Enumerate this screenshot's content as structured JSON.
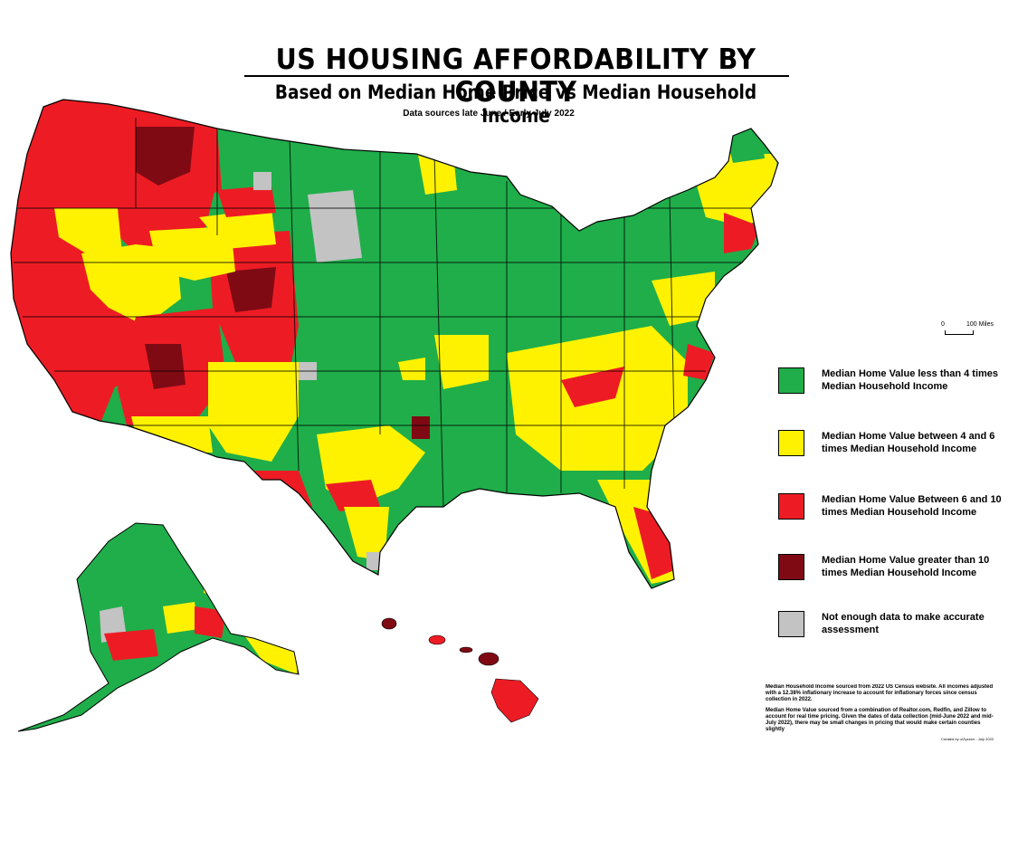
{
  "header": {
    "title": "US HOUSING AFFORDABILITY BY COUNTY",
    "subtitle": "Based on Median Home Price vs Median Household Income",
    "sources": "Data sources late June / Early July 2022"
  },
  "scale": {
    "zero": "0",
    "label": "100 Miles"
  },
  "colors": {
    "green": "#1fae4a",
    "yellow": "#fff200",
    "red": "#ed1c24",
    "dark_red": "#7f0a14",
    "gray": "#c3c3c3"
  },
  "legend": [
    {
      "text": "Median Home Value less than 4 times Median Household Income",
      "color": "#1fae4a"
    },
    {
      "text": "Median Home Value between 4 and 6 times Median Household Income",
      "color": "#fff200"
    },
    {
      "text": "Median Home Value Between 6 and 10 times Median Household Income",
      "color": "#ed1c24"
    },
    {
      "text": "Median Home Value greater than 10 times Median Household Income",
      "color": "#7f0a14"
    },
    {
      "text": "Not enough data to make accurate assessment",
      "color": "#c3c3c3"
    }
  ],
  "notes": {
    "income": "Median Household Income sourced from 2022 US Census website.  All incomes adjusted with a 12.38% inflationary increase to account for inflationary forces since census collection in 2022.",
    "value": "Median Home Value sourced from a combination of Realtor.com, Redfin, and Zillow to account for real time pricing.  Given the dates of data collection (mid-June 2022 and mid-July 2022), there may be small changes in pricing that would make certain counties slightly",
    "credit": "Created by u/Zyzzerr - July 2022"
  }
}
